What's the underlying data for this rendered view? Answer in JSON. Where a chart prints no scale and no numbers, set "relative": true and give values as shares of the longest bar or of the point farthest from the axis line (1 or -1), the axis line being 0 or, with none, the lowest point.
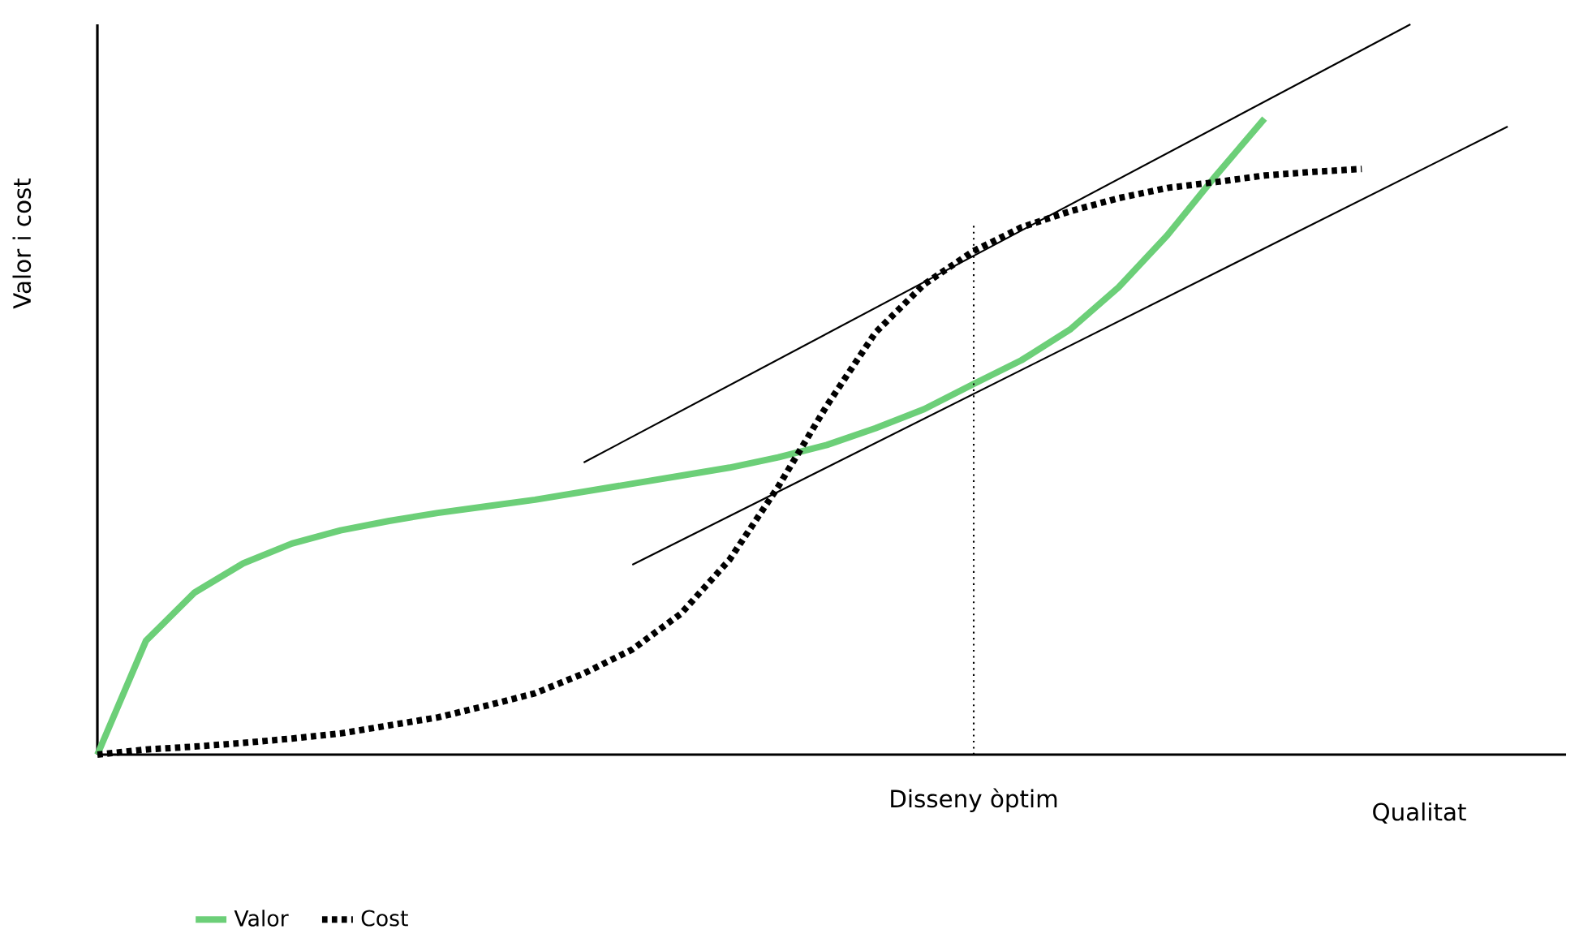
{
  "chart_data": {
    "type": "line",
    "relative": true,
    "xlabel": "Qualitat",
    "ylabel": "Valor i cost",
    "legend": "bottom",
    "categories": [
      null,
      null,
      null,
      null,
      null,
      null,
      null,
      null,
      null,
      null,
      null,
      null,
      null,
      null,
      null,
      null,
      null,
      null,
      null,
      null,
      null,
      null,
      null,
      null,
      null,
      null,
      null,
      null,
      null,
      null
    ],
    "series": [
      {
        "name": "Valor",
        "color": "#6ccf78",
        "line_style": "solid",
        "values": [
          0,
          0.156,
          0.222,
          0.262,
          0.289,
          0.307,
          0.32,
          0.331,
          0.34,
          0.349,
          0.36,
          0.371,
          0.382,
          0.393,
          0.407,
          0.424,
          0.447,
          0.473,
          0.507,
          0.54,
          0.582,
          0.64,
          0.711,
          0.793,
          0.871,
          null,
          null,
          null,
          null,
          null
        ]
      },
      {
        "name": "Cost",
        "color": "#000000",
        "line_style": "dotted",
        "values": [
          0,
          0.007,
          0.011,
          0.016,
          0.022,
          0.029,
          0.04,
          0.051,
          0.067,
          0.084,
          0.111,
          0.144,
          0.193,
          0.267,
          0.367,
          0.478,
          0.578,
          0.644,
          0.689,
          0.722,
          0.744,
          0.762,
          0.776,
          0.784,
          0.793,
          0.798,
          0.802,
          null,
          null,
          null
        ]
      },
      {
        "color": "#000000",
        "line_style": "solid",
        "values": [
          null,
          null,
          null,
          null,
          null,
          null,
          null,
          null,
          null,
          null,
          0.4,
          null,
          null,
          null,
          null,
          null,
          null,
          null,
          null,
          null,
          null,
          null,
          null,
          null,
          null,
          null,
          null,
          1.0,
          null,
          null
        ]
      },
      {
        "color": "#000000",
        "line_style": "solid",
        "values": [
          null,
          null,
          null,
          null,
          null,
          null,
          null,
          null,
          null,
          null,
          null,
          0.26,
          null,
          null,
          null,
          null,
          null,
          null,
          null,
          null,
          null,
          null,
          null,
          null,
          null,
          null,
          null,
          null,
          null,
          0.86
        ]
      }
    ],
    "annotations": [
      "Disseny òptim"
    ]
  }
}
